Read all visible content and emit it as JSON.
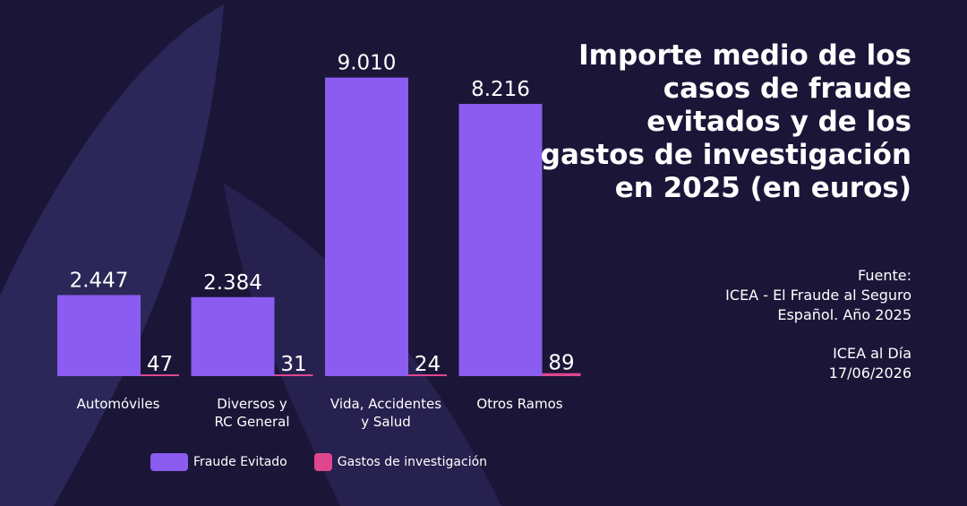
{
  "title": "Importe medio de los casos de fraude evitados y de los gastos de investigación en 2025 (en euros)",
  "source": {
    "line1": "Fuente:",
    "line2": "ICEA - El Fraude al Seguro",
    "line3": "Español. Año 2025"
  },
  "credit": {
    "line1": "ICEA al Día",
    "line2": "17/06/2026"
  },
  "colors": {
    "background": "#1b1638",
    "fraude": "#8b5cf0",
    "gastos": "#e0468f"
  },
  "chart_data": {
    "type": "bar",
    "categories": [
      "Automóviles",
      "Diversos y RC General",
      "Vida, Accidentes y Salud",
      "Otros Ramos"
    ],
    "category_lines": [
      [
        "Automóviles"
      ],
      [
        "Diversos y",
        "RC General"
      ],
      [
        "Vida, Accidentes",
        "y Salud"
      ],
      [
        "Otros Ramos"
      ]
    ],
    "series": [
      {
        "name": "Fraude Evitado",
        "values": [
          2447,
          2384,
          9010,
          8216
        ],
        "labels": [
          "2.447",
          "2.384",
          "9.010",
          "8.216"
        ],
        "color": "#8b5cf0"
      },
      {
        "name": "Gastos de investigación",
        "values": [
          47,
          31,
          24,
          89
        ],
        "labels": [
          "47",
          "31",
          "24",
          "89"
        ],
        "color": "#e0468f"
      }
    ],
    "ylim": [
      0,
      10000
    ],
    "legend": "bottom",
    "grid": false
  }
}
